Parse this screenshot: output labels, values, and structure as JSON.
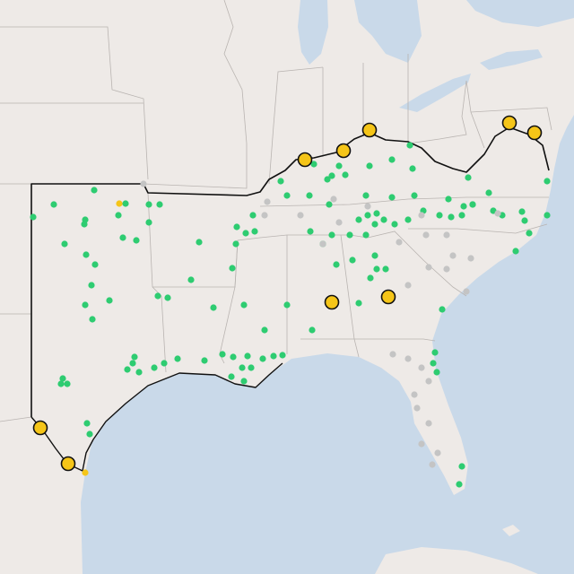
{
  "map": {
    "marker_colors": {
      "station": "#2ecc71",
      "inactive": "#c4c4c4",
      "highlight": "#f5c518"
    }
  }
}
